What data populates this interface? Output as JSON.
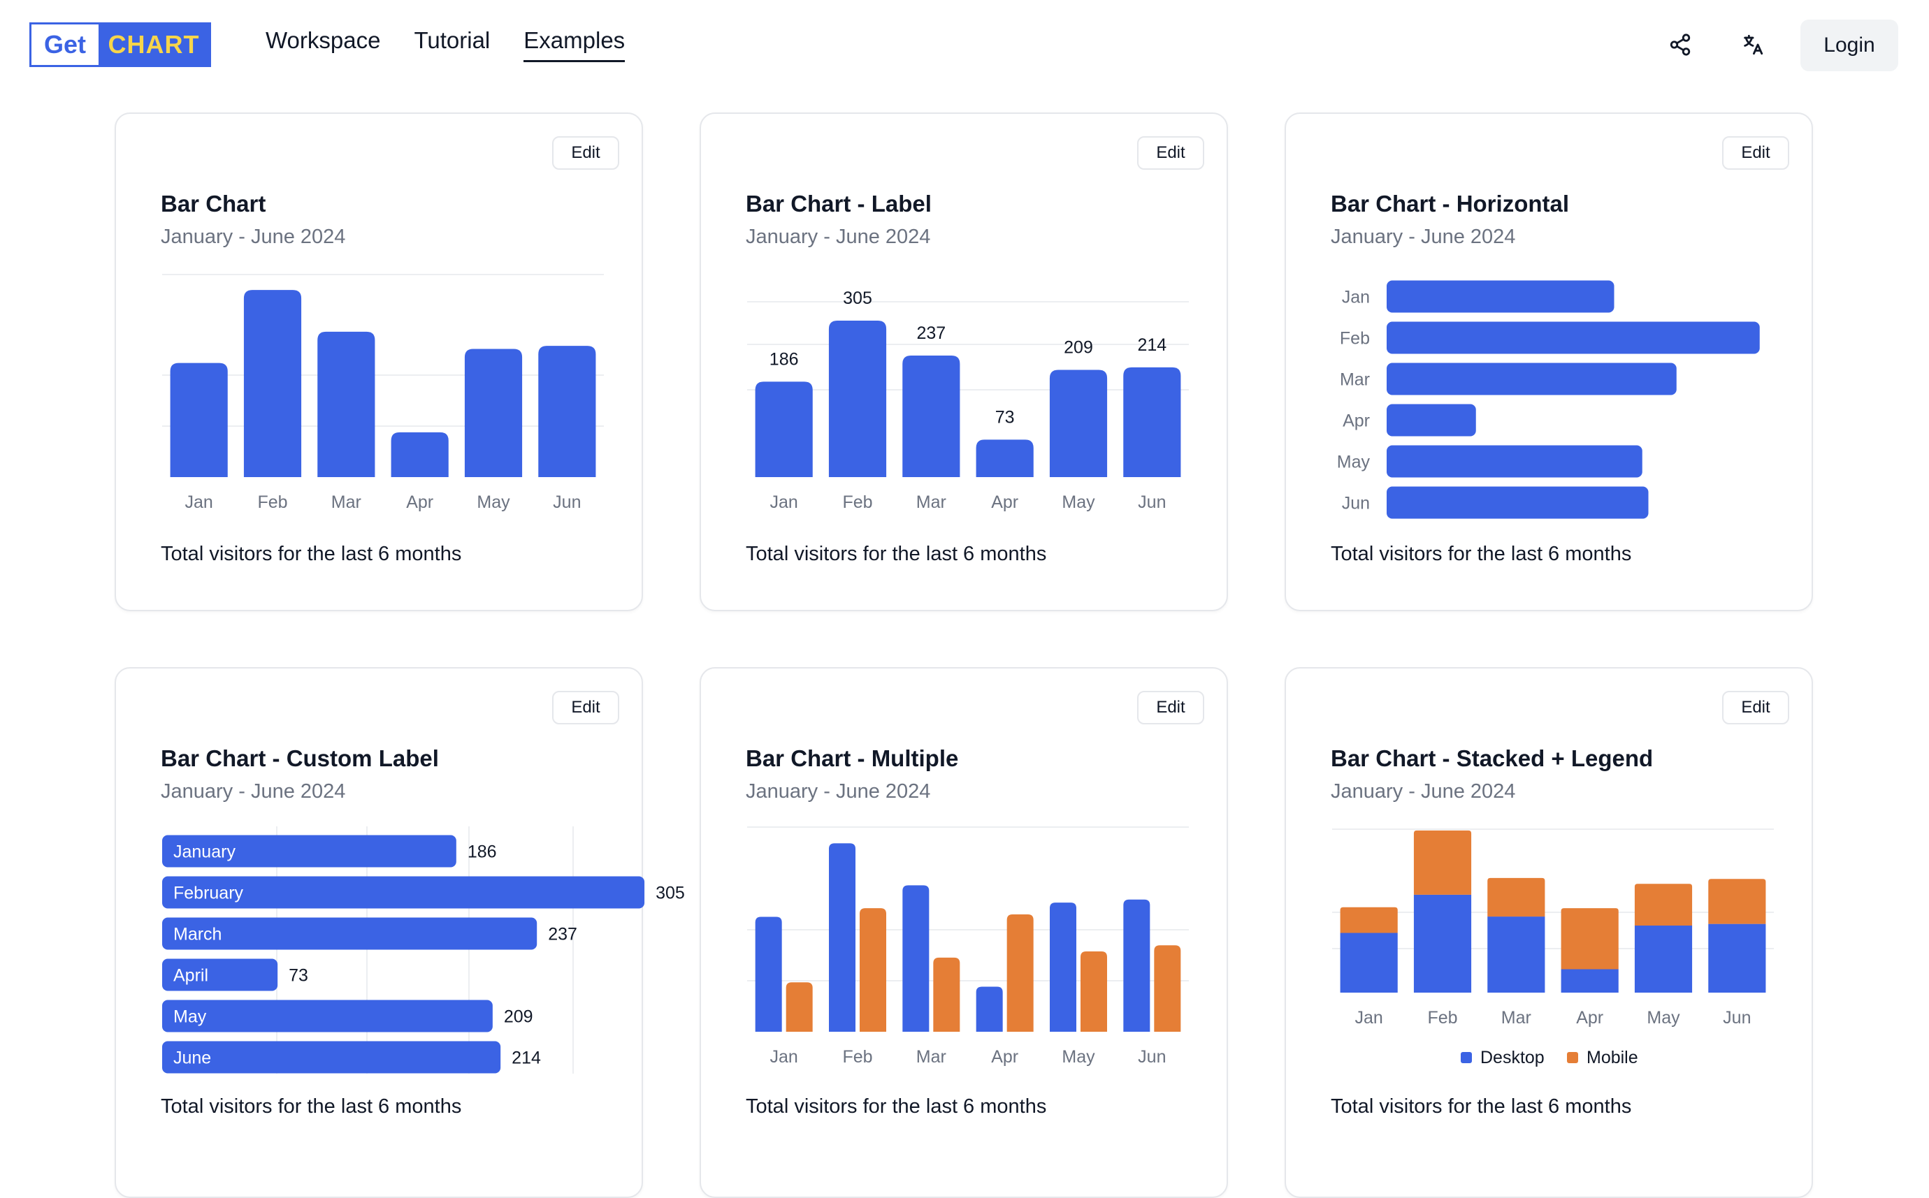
{
  "app": {
    "logo_left": "Get",
    "logo_right": "CHART"
  },
  "nav": {
    "items": [
      "Workspace",
      "Tutorial",
      "Examples"
    ],
    "active": "Examples"
  },
  "header": {
    "share_icon": "share-icon",
    "translate_icon": "translate-icon",
    "login_label": "Login"
  },
  "colors": {
    "primary": "#3b63e4",
    "secondary": "#e57e36",
    "logo_yellow": "#f7d54a",
    "axis_text": "#6b7280",
    "grid": "#eceef1"
  },
  "cards": [
    {
      "title": "Bar Chart",
      "subtitle": "January - June 2024",
      "edit": "Edit",
      "footer": "Total visitors for the last 6 months"
    },
    {
      "title": "Bar Chart - Label",
      "subtitle": "January - June 2024",
      "edit": "Edit",
      "footer": "Total visitors for the last 6 months"
    },
    {
      "title": "Bar Chart - Horizontal",
      "subtitle": "January - June 2024",
      "edit": "Edit",
      "footer": "Total visitors for the last 6 months"
    },
    {
      "title": "Bar Chart - Custom Label",
      "subtitle": "January - June 2024",
      "edit": "Edit",
      "footer": "Total visitors for the last 6 months"
    },
    {
      "title": "Bar Chart - Multiple",
      "subtitle": "January - June 2024",
      "edit": "Edit",
      "footer": "Total visitors for the last 6 months"
    },
    {
      "title": "Bar Chart - Stacked + Legend",
      "subtitle": "January - June 2024",
      "edit": "Edit",
      "footer": "Total visitors for the last 6 months"
    }
  ],
  "chart_data": [
    {
      "type": "bar",
      "title": "Bar Chart",
      "categories": [
        "Jan",
        "Feb",
        "Mar",
        "Apr",
        "May",
        "Jun"
      ],
      "values": [
        186,
        305,
        237,
        73,
        209,
        214
      ],
      "ylim": [
        0,
        320
      ],
      "grid": true,
      "data_labels": false
    },
    {
      "type": "bar",
      "title": "Bar Chart - Label",
      "categories": [
        "Jan",
        "Feb",
        "Mar",
        "Apr",
        "May",
        "Jun"
      ],
      "values": [
        186,
        305,
        237,
        73,
        209,
        214
      ],
      "ylim": [
        0,
        320
      ],
      "grid": true,
      "data_labels": true
    },
    {
      "type": "bar",
      "orientation": "horizontal",
      "title": "Bar Chart - Horizontal",
      "categories": [
        "Jan",
        "Feb",
        "Mar",
        "Apr",
        "May",
        "Jun"
      ],
      "values": [
        186,
        305,
        237,
        73,
        209,
        214
      ],
      "xlim": [
        0,
        320
      ],
      "grid": false
    },
    {
      "type": "bar",
      "orientation": "horizontal",
      "title": "Bar Chart - Custom Label",
      "categories": [
        "January",
        "February",
        "March",
        "April",
        "May",
        "June"
      ],
      "values": [
        186,
        305,
        237,
        73,
        209,
        214
      ],
      "xlim": [
        0,
        320
      ],
      "grid": true,
      "labels_inside": true,
      "data_labels": true
    },
    {
      "type": "bar",
      "title": "Bar Chart - Multiple",
      "categories": [
        "Jan",
        "Feb",
        "Mar",
        "Apr",
        "May",
        "Jun"
      ],
      "series": [
        {
          "name": "Desktop",
          "values": [
            186,
            305,
            237,
            73,
            209,
            214
          ]
        },
        {
          "name": "Mobile",
          "values": [
            80,
            200,
            120,
            190,
            130,
            140
          ]
        }
      ],
      "ylim": [
        0,
        320
      ],
      "grid": true
    },
    {
      "type": "bar",
      "stacked": true,
      "title": "Bar Chart - Stacked + Legend",
      "categories": [
        "Jan",
        "Feb",
        "Mar",
        "Apr",
        "May",
        "Jun"
      ],
      "series": [
        {
          "name": "Desktop",
          "values": [
            186,
            305,
            237,
            73,
            209,
            214
          ]
        },
        {
          "name": "Mobile",
          "values": [
            80,
            200,
            120,
            190,
            130,
            140
          ]
        }
      ],
      "legend": [
        "Desktop",
        "Mobile"
      ],
      "legend_position": "bottom",
      "ylim": [
        0,
        520
      ],
      "grid": true
    }
  ]
}
